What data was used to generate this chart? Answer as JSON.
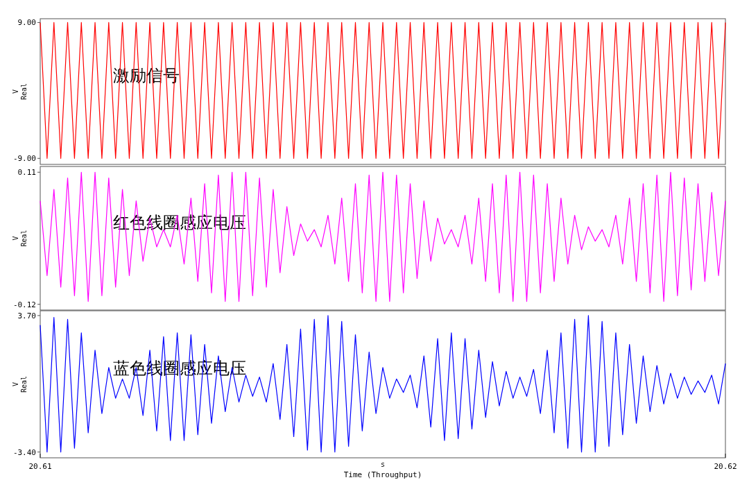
{
  "chart_data": [
    {
      "type": "line",
      "ylabel": "V\nReal",
      "xlim": [
        20.61,
        20.62
      ],
      "ylim": [
        -9.8,
        9.5
      ],
      "yticks": [
        {
          "value": 9,
          "label": "9.00"
        },
        {
          "value": -9,
          "label": "-9.00"
        }
      ],
      "tick_labels": "y",
      "legend": false,
      "x": [
        20.61,
        20.6101,
        20.6102,
        20.6103,
        20.6104,
        20.6105,
        20.6106,
        20.6107,
        20.6108,
        20.6109,
        20.611,
        20.6111,
        20.6112,
        20.6113,
        20.6114,
        20.6115,
        20.6116,
        20.6117,
        20.6118,
        20.6119,
        20.612,
        20.6121,
        20.6122,
        20.6123,
        20.6124,
        20.6125,
        20.6126,
        20.6127,
        20.6128,
        20.6129,
        20.613,
        20.6131,
        20.6132,
        20.6133,
        20.6134,
        20.6135,
        20.6136,
        20.6137,
        20.6138,
        20.6139,
        20.614,
        20.6141,
        20.6142,
        20.6143,
        20.6144,
        20.6145,
        20.6146,
        20.6147,
        20.6148,
        20.6149,
        20.615,
        20.6151,
        20.6152,
        20.6153,
        20.6154,
        20.6155,
        20.6156,
        20.6157,
        20.6158,
        20.6159,
        20.616,
        20.6161,
        20.6162,
        20.6163,
        20.6164,
        20.6165,
        20.6166,
        20.6167,
        20.6168,
        20.6169,
        20.617,
        20.6171,
        20.6172,
        20.6173,
        20.6174,
        20.6175,
        20.6176,
        20.6177,
        20.6178,
        20.6179,
        20.618,
        20.6181,
        20.6182,
        20.6183,
        20.6184,
        20.6185,
        20.6186,
        20.6187,
        20.6188,
        20.6189,
        20.619,
        20.6191,
        20.6192,
        20.6193,
        20.6194,
        20.6195,
        20.6196,
        20.6197,
        20.6198,
        20.6199,
        20.62
      ],
      "series": [
        {
          "name": "激励信号",
          "color": "#ff0000",
          "values": [
            9,
            -9,
            9,
            -9,
            9,
            -9,
            9,
            -9,
            9,
            -9,
            9,
            -9,
            9,
            -9,
            9,
            -9,
            9,
            -9,
            9,
            -9,
            9,
            -9,
            9,
            -9,
            9,
            -9,
            9,
            -9,
            9,
            -9,
            9,
            -9,
            9,
            -9,
            9,
            -9,
            9,
            -9,
            9,
            -9,
            9,
            -9,
            9,
            -9,
            9,
            -9,
            9,
            -9,
            9,
            -9,
            9,
            -9,
            9,
            -9,
            9,
            -9,
            9,
            -9,
            9,
            -9,
            9,
            -9,
            9,
            -9,
            9,
            -9,
            9,
            -9,
            9,
            -9,
            9,
            -9,
            9,
            -9,
            9,
            -9,
            9,
            -9,
            9,
            -9,
            9,
            -9,
            9,
            -9,
            9,
            -9,
            9,
            -9,
            9,
            -9,
            9,
            -9,
            9,
            -9,
            9,
            -9,
            9,
            -9,
            9,
            -9,
            9
          ]
        }
      ]
    },
    {
      "type": "line",
      "ylabel": "V\nReal",
      "xlim": [
        20.61,
        20.62
      ],
      "ylim": [
        -0.13,
        0.12
      ],
      "yticks": [
        {
          "value": 0.11,
          "label": "0.11"
        },
        {
          "value": -0.12,
          "label": "-0.12"
        }
      ],
      "tick_labels": "y",
      "legend": false,
      "x": [
        20.61,
        20.6101,
        20.6102,
        20.6103,
        20.6104,
        20.6105,
        20.6106,
        20.6107,
        20.6108,
        20.6109,
        20.611,
        20.6111,
        20.6112,
        20.6113,
        20.6114,
        20.6115,
        20.6116,
        20.6117,
        20.6118,
        20.6119,
        20.612,
        20.6121,
        20.6122,
        20.6123,
        20.6124,
        20.6125,
        20.6126,
        20.6127,
        20.6128,
        20.6129,
        20.613,
        20.6131,
        20.6132,
        20.6133,
        20.6134,
        20.6135,
        20.6136,
        20.6137,
        20.6138,
        20.6139,
        20.614,
        20.6141,
        20.6142,
        20.6143,
        20.6144,
        20.6145,
        20.6146,
        20.6147,
        20.6148,
        20.6149,
        20.615,
        20.6151,
        20.6152,
        20.6153,
        20.6154,
        20.6155,
        20.6156,
        20.6157,
        20.6158,
        20.6159,
        20.616,
        20.6161,
        20.6162,
        20.6163,
        20.6164,
        20.6165,
        20.6166,
        20.6167,
        20.6168,
        20.6169,
        20.617,
        20.6171,
        20.6172,
        20.6173,
        20.6174,
        20.6175,
        20.6176,
        20.6177,
        20.6178,
        20.6179,
        20.618,
        20.6181,
        20.6182,
        20.6183,
        20.6184,
        20.6185,
        20.6186,
        20.6187,
        20.6188,
        20.6189,
        20.619,
        20.6191,
        20.6192,
        20.6193,
        20.6194,
        20.6195,
        20.6196,
        20.6197,
        20.6198,
        20.6199,
        20.62
      ],
      "series": [
        {
          "name": "红色线圈感应电压",
          "color": "#ff00ff",
          "values": [
            0.06,
            -0.07,
            0.08,
            -0.09,
            0.1,
            -0.105,
            0.11,
            -0.115,
            0.11,
            -0.105,
            0.1,
            -0.09,
            0.08,
            -0.07,
            0.06,
            -0.045,
            0.03,
            -0.02,
            0.01,
            -0.02,
            0.035,
            -0.05,
            0.065,
            -0.08,
            0.09,
            -0.1,
            0.105,
            -0.115,
            0.11,
            -0.115,
            0.11,
            -0.105,
            0.1,
            -0.09,
            0.08,
            -0.065,
            0.05,
            -0.035,
            0.02,
            -0.01,
            0.01,
            -0.02,
            0.035,
            -0.05,
            0.065,
            -0.08,
            0.09,
            -0.1,
            0.105,
            -0.115,
            0.11,
            -0.115,
            0.105,
            -0.1,
            0.09,
            -0.075,
            0.06,
            -0.045,
            0.03,
            -0.015,
            0.01,
            -0.02,
            0.035,
            -0.05,
            0.065,
            -0.08,
            0.09,
            -0.1,
            0.105,
            -0.115,
            0.11,
            -0.115,
            0.105,
            -0.1,
            0.09,
            -0.08,
            0.065,
            -0.05,
            0.035,
            -0.025,
            0.015,
            -0.01,
            0.01,
            -0.02,
            0.035,
            -0.05,
            0.065,
            -0.08,
            0.09,
            -0.1,
            0.105,
            -0.115,
            0.11,
            -0.105,
            0.1,
            -0.095,
            0.09,
            -0.08,
            0.075,
            -0.07,
            0.06
          ]
        }
      ]
    },
    {
      "type": "line",
      "ylabel": "V\nReal",
      "xlabel": "Time (Throughput)",
      "annotations": [
        "s"
      ],
      "xlim": [
        20.61,
        20.62
      ],
      "xticks": [
        20.61,
        20.62
      ],
      "ylim": [
        -3.7,
        3.95
      ],
      "yticks": [
        {
          "value": 3.7,
          "label": "3.70"
        },
        {
          "value": -3.4,
          "label": "-3.40"
        }
      ],
      "legend": false,
      "x": [
        20.61,
        20.6101,
        20.6102,
        20.6103,
        20.6104,
        20.6105,
        20.6106,
        20.6107,
        20.6108,
        20.6109,
        20.611,
        20.6111,
        20.6112,
        20.6113,
        20.6114,
        20.6115,
        20.6116,
        20.6117,
        20.6118,
        20.6119,
        20.612,
        20.6121,
        20.6122,
        20.6123,
        20.6124,
        20.6125,
        20.6126,
        20.6127,
        20.6128,
        20.6129,
        20.613,
        20.6131,
        20.6132,
        20.6133,
        20.6134,
        20.6135,
        20.6136,
        20.6137,
        20.6138,
        20.6139,
        20.614,
        20.6141,
        20.6142,
        20.6143,
        20.6144,
        20.6145,
        20.6146,
        20.6147,
        20.6148,
        20.6149,
        20.615,
        20.6151,
        20.6152,
        20.6153,
        20.6154,
        20.6155,
        20.6156,
        20.6157,
        20.6158,
        20.6159,
        20.616,
        20.6161,
        20.6162,
        20.6163,
        20.6164,
        20.6165,
        20.6166,
        20.6167,
        20.6168,
        20.6169,
        20.617,
        20.6171,
        20.6172,
        20.6173,
        20.6174,
        20.6175,
        20.6176,
        20.6177,
        20.6178,
        20.6179,
        20.618,
        20.6181,
        20.6182,
        20.6183,
        20.6184,
        20.6185,
        20.6186,
        20.6187,
        20.6188,
        20.6189,
        20.619,
        20.6191,
        20.6192,
        20.6193,
        20.6194,
        20.6195,
        20.6196,
        20.6197,
        20.6198,
        20.6199,
        20.62
      ],
      "series": [
        {
          "name": "蓝色线圈感应电压",
          "color": "#0000ff",
          "values": [
            3.2,
            -3.4,
            3.6,
            -3.4,
            3.5,
            -3.2,
            2.8,
            -2.4,
            1.9,
            -1.4,
            1,
            -0.6,
            0.4,
            -0.6,
            1,
            -1.5,
            1.9,
            -2.3,
            2.6,
            -2.8,
            2.8,
            -2.8,
            2.7,
            -2.5,
            2.2,
            -1.9,
            1.6,
            -1.3,
            1,
            -0.8,
            0.6,
            -0.5,
            0.5,
            -0.8,
            1.2,
            -1.7,
            2.2,
            -2.6,
            3,
            -3.3,
            3.5,
            -3.4,
            3.7,
            -3.4,
            3.4,
            -3.1,
            2.7,
            -2.3,
            1.8,
            -1.4,
            1,
            -0.6,
            0.4,
            -0.3,
            0.6,
            -1.1,
            1.6,
            -2.1,
            2.5,
            -2.8,
            2.8,
            -2.7,
            2.5,
            -2.2,
            1.9,
            -1.6,
            1.3,
            -1,
            0.8,
            -0.6,
            0.5,
            -0.5,
            0.9,
            -1.4,
            1.9,
            -2.4,
            2.8,
            -3.2,
            3.5,
            -3.4,
            3.7,
            -3.4,
            3.4,
            -3.1,
            2.8,
            -2.5,
            2.2,
            -1.9,
            1.6,
            -1.3,
            1.1,
            -0.9,
            0.7,
            -0.6,
            0.5,
            -0.4,
            0.3,
            -0.3,
            0.6,
            -0.9,
            1.2
          ]
        }
      ]
    }
  ]
}
